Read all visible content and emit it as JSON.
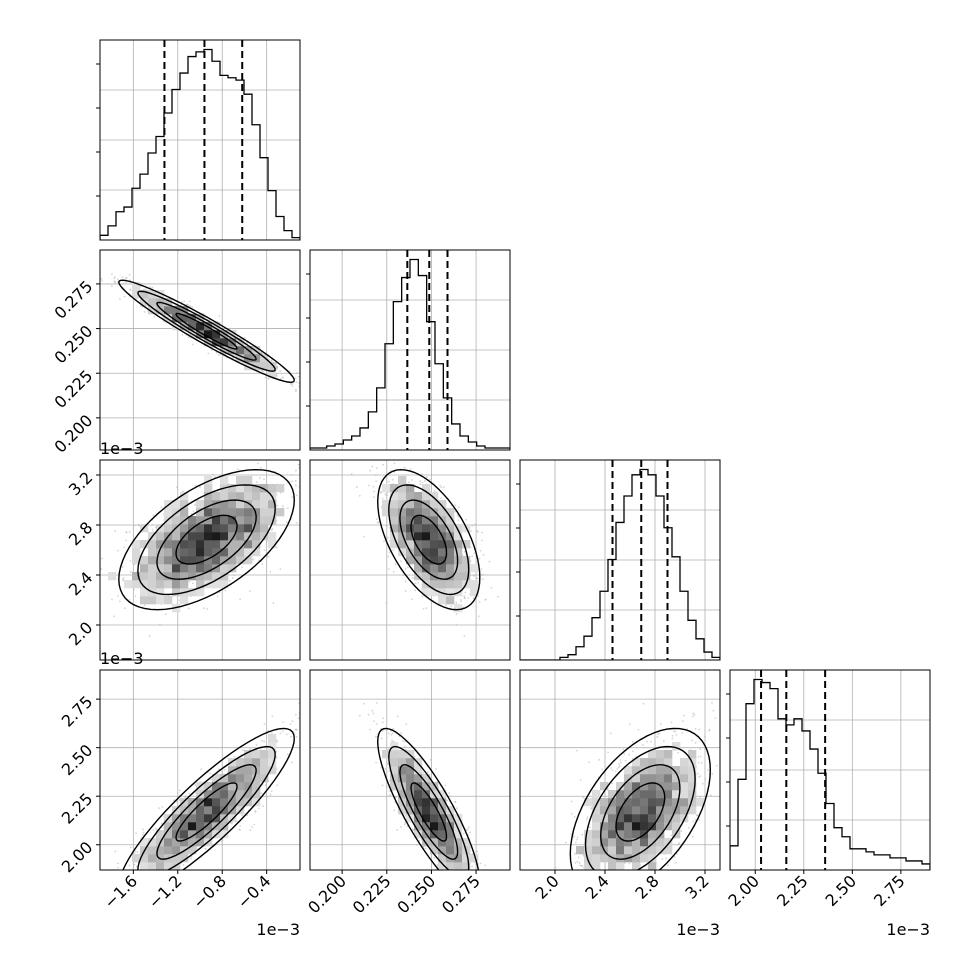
{
  "chart_data": {
    "type": "corner",
    "params": [
      {
        "range": [
          -1.9,
          -0.1
        ],
        "ticks": [
          -1.6,
          -1.2,
          -0.8,
          -0.4
        ],
        "tick_labels": [
          "−1.6",
          "−1.2",
          "−0.8",
          "−0.4"
        ],
        "offset_label": "1e−3",
        "quantiles": [
          -1.32,
          -0.96,
          -0.62
        ]
      },
      {
        "range": [
          0.182,
          0.294
        ],
        "ticks": [
          0.2,
          0.225,
          0.25,
          0.275
        ],
        "tick_labels": [
          "0.200",
          "0.225",
          "0.250",
          "0.275"
        ],
        "offset_label": "",
        "quantiles": [
          0.2365,
          0.2488,
          0.259
        ]
      },
      {
        "range": [
          1.72,
          3.32
        ],
        "ticks": [
          2.0,
          2.4,
          2.8,
          3.2
        ],
        "tick_labels": [
          "2.0",
          "2.4",
          "2.8",
          "3.2"
        ],
        "offset_label": "1e−3",
        "quantiles": [
          2.46,
          2.69,
          2.9
        ]
      },
      {
        "range": [
          1.87,
          2.9
        ],
        "ticks": [
          2.0,
          2.25,
          2.5,
          2.75
        ],
        "tick_labels": [
          "2.00",
          "2.25",
          "2.50",
          "2.75"
        ],
        "offset_label": "1e−3",
        "quantiles": [
          2.03,
          2.16,
          2.36
        ]
      }
    ],
    "histograms": [
      [
        2,
        6,
        12,
        14,
        22,
        28,
        37,
        44,
        54,
        64,
        71,
        78,
        80,
        81,
        76,
        70,
        69,
        68,
        62,
        49,
        35,
        21,
        10,
        4,
        1
      ],
      [
        1,
        1,
        2,
        3,
        5,
        7,
        11,
        19,
        31,
        53,
        74,
        86,
        95,
        87,
        64,
        43,
        26,
        13,
        7,
        4,
        2,
        1,
        1,
        1
      ],
      [
        0,
        0,
        0,
        0,
        0,
        1,
        2,
        5,
        9,
        16,
        26,
        38,
        52,
        62,
        70,
        72,
        70,
        62,
        50,
        39,
        26,
        15,
        8,
        3,
        1
      ],
      [
        8,
        30,
        55,
        63,
        62,
        60,
        50,
        48,
        50,
        46,
        40,
        32,
        22,
        14,
        11,
        7,
        7,
        6,
        5,
        5,
        4,
        4,
        3,
        3,
        2
      ]
    ],
    "grid": true,
    "quantile_lines": "dashed",
    "contours": "filled-2d-histogram"
  }
}
